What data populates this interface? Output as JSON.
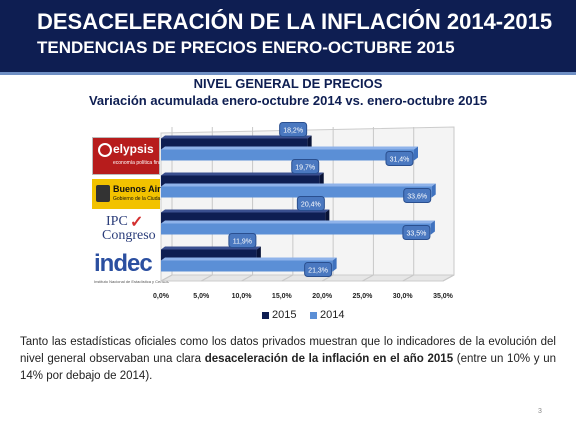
{
  "header": {
    "title": "DESACELERACIÓN DE LA INFLACIÓN 2014-2015",
    "subtitle": "TENDENCIAS DE PRECIOS ENERO-OCTUBRE 2015"
  },
  "logos": {
    "elypsis": {
      "name": "elypsis",
      "sub": "economía política finanzas"
    },
    "buenos_aires": {
      "name": "Buenos Aires",
      "sub": "Gobierno de la Ciudad"
    },
    "ipc": {
      "line1": "IPC",
      "line2": "Congreso",
      "check": "✓"
    },
    "indec": {
      "name": "indec",
      "sub": "Instituto Nacional de Estadística y Censos"
    }
  },
  "chart_data": {
    "type": "bar",
    "orientation": "horizontal",
    "title": "NIVEL GENERAL DE PRECIOS",
    "subtitle": "Variación acumulada enero-octubre 2014 vs. enero-octubre 2015",
    "categories": [
      "elypsis",
      "Buenos Aires",
      "IPC Congreso",
      "INDEC"
    ],
    "series": [
      {
        "name": "2015",
        "color": "#0e1e52",
        "values": [
          18.2,
          19.7,
          20.4,
          11.9
        ],
        "labels": [
          "18,2%",
          "19,7%",
          "20,4%",
          "11,9%"
        ]
      },
      {
        "name": "2014",
        "color": "#5b8fd6",
        "values": [
          31.4,
          33.6,
          33.5,
          21.3
        ],
        "labels": [
          "31,4%",
          "33,6%",
          "33,5%",
          "21,3%"
        ]
      }
    ],
    "xlim": [
      0,
      35
    ],
    "ticks": [
      0,
      5,
      10,
      15,
      20,
      25,
      30,
      35
    ],
    "tick_labels": [
      "0,0%",
      "5,0%",
      "10,0%",
      "15,0%",
      "20,0%",
      "25,0%",
      "30,0%",
      "35,0%"
    ],
    "grid": true,
    "legend": "bottom"
  },
  "body": {
    "p1": "Tanto las estadísticas oficiales como los datos privados muestran que lo indicadores de la evolución del nivel general observaban una clara ",
    "bold": "desaceleración de la inflación en el año 2015",
    "p2": " (entre un 10% y un 14% por debajo de 2014)."
  },
  "page_number": "3"
}
